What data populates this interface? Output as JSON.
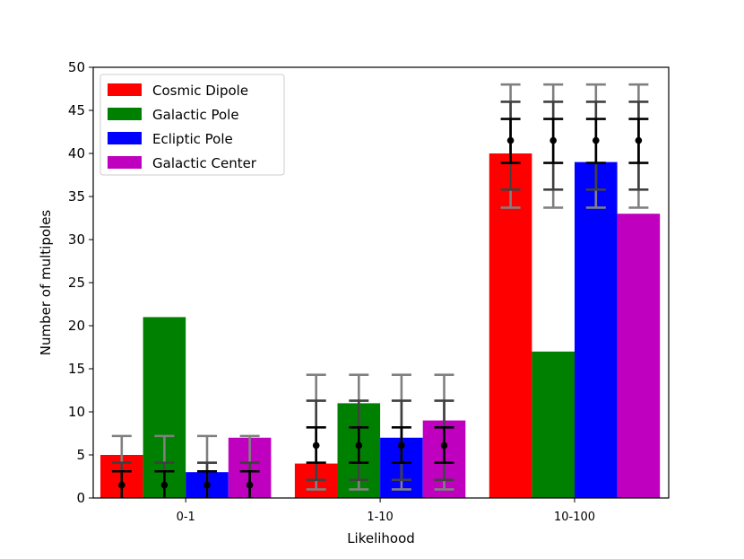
{
  "chart_data": {
    "type": "bar",
    "title": "",
    "xlabel": "Likelihood",
    "ylabel": "Number of multipoles",
    "ylim": [
      0,
      50
    ],
    "yticks": [
      0,
      5,
      10,
      15,
      20,
      25,
      30,
      35,
      40,
      45,
      50
    ],
    "categories": [
      "0-1",
      "1-10",
      "10-100"
    ],
    "legend_position": "top-left",
    "grid": false,
    "series": [
      {
        "name": "Cosmic Dipole",
        "color": "#ff0000",
        "values": [
          5,
          4,
          40
        ]
      },
      {
        "name": "Galactic Pole",
        "color": "#008000",
        "values": [
          21,
          11,
          17
        ]
      },
      {
        "name": "Ecliptic Pole",
        "color": "#0000ff",
        "values": [
          3,
          7,
          39
        ]
      },
      {
        "name": "Galactic Center",
        "color": "#bf00bf",
        "values": [
          7,
          9,
          33
        ]
      }
    ],
    "expected": {
      "values": [
        1.5,
        6.1,
        41.5
      ],
      "error_bands": [
        {
          "level": "1sigma",
          "color": "#000000",
          "low": [
            0,
            4.1,
            38.9
          ],
          "high": [
            3.1,
            8.2,
            44.0
          ]
        },
        {
          "level": "2sigma",
          "color": "#404040",
          "low": [
            0,
            2.1,
            35.8
          ],
          "high": [
            4.1,
            11.3,
            46.0
          ]
        },
        {
          "level": "3sigma",
          "color": "#808080",
          "low": [
            0,
            1.0,
            33.7
          ],
          "high": [
            7.2,
            14.3,
            48.0
          ]
        }
      ]
    }
  }
}
